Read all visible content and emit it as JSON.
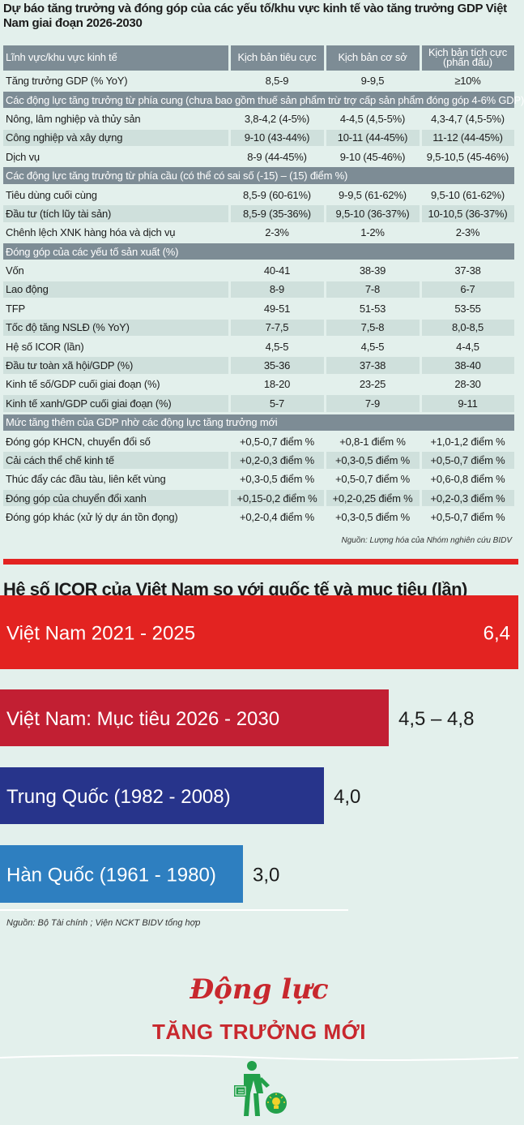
{
  "title": "Dự báo tăng trưởng và đóng góp của các yếu tố/khu vực kinh tế vào tăng trưởng GDP Việt Nam giai đoạn 2026-2030",
  "header": {
    "col0": "Lĩnh vực/khu vực kinh tế",
    "col1": "Kịch bản tiêu cực",
    "col2": "Kịch bản cơ sở",
    "col3_line1": "Kịch bản tích cực",
    "col3_line2": "(phấn đấu)"
  },
  "rows": [
    {
      "label": "Tăng trưởng GDP (% YoY)",
      "v1": "8,5-9",
      "v2": "9-9,5",
      "v3": "≥10%"
    },
    {
      "section": "Các động lực tăng trưởng từ phía cung (chưa bao gồm thuế sản phẩm trừ trợ cấp sản phẩm đóng góp 4-6% GDP)"
    },
    {
      "label": "Nông, lâm nghiệp và thủy sản",
      "v1": "3,8-4,2 (4-5%)",
      "v2": "4-4,5 (4,5-5%)",
      "v3": "4,3-4,7 (4,5-5%)"
    },
    {
      "label": "Công nghiệp và xây dựng",
      "v1": "9-10 (43-44%)",
      "v2": "10-11 (44-45%)",
      "v3": "11-12 (44-45%)"
    },
    {
      "label": "Dịch vụ",
      "v1": "8-9 (44-45%)",
      "v2": "9-10 (45-46%)",
      "v3": "9,5-10,5 (45-46%)"
    },
    {
      "section": "Các động lực tăng trưởng từ phía cầu (có thể có sai số (-15) – (15) điểm %)"
    },
    {
      "label": "Tiêu dùng cuối cùng",
      "v1": "8,5-9 (60-61%)",
      "v2": "9-9,5 (61-62%)",
      "v3": "9,5-10 (61-62%)"
    },
    {
      "label": "Đầu tư (tích lũy tài sản)",
      "v1": "8,5-9 (35-36%)",
      "v2": "9,5-10 (36-37%)",
      "v3": "10-10,5 (36-37%)"
    },
    {
      "label": "Chênh lệch XNK hàng hóa và dịch vụ",
      "v1": "2-3%",
      "v2": "1-2%",
      "v3": "2-3%"
    },
    {
      "section": "Đóng góp của các yếu tố sản xuất (%)"
    },
    {
      "label": "Vốn",
      "v1": "40-41",
      "v2": "38-39",
      "v3": "37-38"
    },
    {
      "label": "Lao động",
      "v1": "8-9",
      "v2": "7-8",
      "v3": "6-7"
    },
    {
      "label": "TFP",
      "v1": "49-51",
      "v2": "51-53",
      "v3": "53-55"
    },
    {
      "label": "Tốc độ tăng NSLĐ (% YoY)",
      "v1": "7-7,5",
      "v2": "7,5-8",
      "v3": "8,0-8,5"
    },
    {
      "label": "Hệ số ICOR (lần)",
      "v1": "4,5-5",
      "v2": "4,5-5",
      "v3": "4-4,5"
    },
    {
      "label": "Đầu tư toàn xã hội/GDP (%)",
      "v1": "35-36",
      "v2": "37-38",
      "v3": "38-40"
    },
    {
      "label": "Kinh tế số/GDP cuối giai đoạn (%)",
      "v1": "18-20",
      "v2": "23-25",
      "v3": "28-30"
    },
    {
      "label": "Kinh tế xanh/GDP cuối giai đoạn (%)",
      "v1": "5-7",
      "v2": "7-9",
      "v3": "9-11"
    },
    {
      "section": "Mức tăng thêm của GDP nhờ các động lực tăng trưởng mới"
    },
    {
      "label": "Đóng góp KHCN, chuyển đổi số",
      "v1": "+0,5-0,7 điểm %",
      "v2": "+0,8-1 điểm %",
      "v3": "+1,0-1,2 điểm %"
    },
    {
      "label": "Cải cách thể chế kinh tế",
      "v1": "+0,2-0,3 điểm %",
      "v2": "+0,3-0,5 điểm %",
      "v3": "+0,5-0,7 điểm %"
    },
    {
      "label": "Thúc đẩy các đầu tàu, liên kết vùng",
      "v1": "+0,3-0,5 điểm %",
      "v2": "+0,5-0,7 điểm %",
      "v3": "+0,6-0,8 điểm %"
    },
    {
      "label": "Đóng góp của chuyển đổi xanh",
      "v1": "+0,15-0,2 điểm %",
      "v2": "+0,2-0,25 điểm %",
      "v3": "+0,2-0,3 điểm %"
    },
    {
      "label": "Đóng góp khác (xử lý dự án tồn đọng)",
      "v1": "+0,2-0,4 điểm %",
      "v2": "+0,3-0,5 điểm %",
      "v3": "+0,5-0,7 điểm %"
    }
  ],
  "source1": "Nguồn: Lượng hóa của Nhóm nghiên cứu BIDV",
  "chart_data": {
    "type": "bar",
    "orientation": "horizontal",
    "title": "Hệ số ICOR của Việt Nam so với quốc tế  và mục tiêu (lần)",
    "categories": [
      "Việt Nam 2021 - 2025",
      "Việt Nam: Mục tiêu 2026 - 2030",
      "Trung Quốc (1982 - 2008)",
      "Hàn Quốc (1961 - 1980)"
    ],
    "values": [
      6.4,
      4.8,
      4.0,
      3.0
    ],
    "value_labels": [
      "6,4",
      "4,5 – 4,8",
      "4,0",
      "3,0"
    ],
    "colors": [
      "#e32321",
      "#c21f33",
      "#27348b",
      "#2e7fc0"
    ],
    "grid": false,
    "legend": "none"
  },
  "source2": "Nguồn: Bộ Tài chính ; Viện NCKT BIDV tổng hợp",
  "footer": {
    "line1": "Động lực",
    "line2": "TĂNG TRƯỞNG MỚI"
  },
  "colors": {
    "header_bg": "#7d8c95",
    "page_bg": "#e3f0ec",
    "row_alt": "#cfe0dc",
    "accent_red": "#e32321"
  }
}
